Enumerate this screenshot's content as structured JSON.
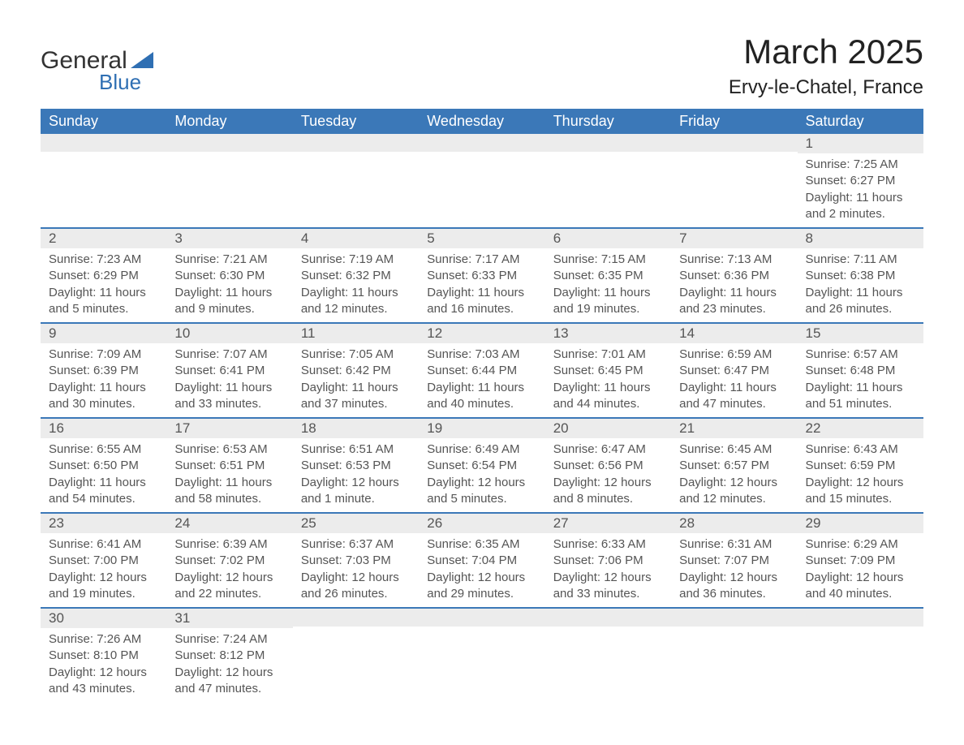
{
  "logo": {
    "text_general": "General",
    "text_blue": "Blue",
    "triangle_color": "#2f6fb3"
  },
  "title": "March 2025",
  "location": "Ervy-le-Chatel, France",
  "header_bg": "#3b78b8",
  "header_text_color": "#ffffff",
  "daynum_bg": "#ececec",
  "row_border_color": "#3b78b8",
  "body_text_color": "#555555",
  "font_family": "Arial, Helvetica, sans-serif",
  "days_of_week": [
    "Sunday",
    "Monday",
    "Tuesday",
    "Wednesday",
    "Thursday",
    "Friday",
    "Saturday"
  ],
  "weeks": [
    [
      null,
      null,
      null,
      null,
      null,
      null,
      {
        "n": "1",
        "sunrise": "Sunrise: 7:25 AM",
        "sunset": "Sunset: 6:27 PM",
        "daylight": "Daylight: 11 hours and 2 minutes."
      }
    ],
    [
      {
        "n": "2",
        "sunrise": "Sunrise: 7:23 AM",
        "sunset": "Sunset: 6:29 PM",
        "daylight": "Daylight: 11 hours and 5 minutes."
      },
      {
        "n": "3",
        "sunrise": "Sunrise: 7:21 AM",
        "sunset": "Sunset: 6:30 PM",
        "daylight": "Daylight: 11 hours and 9 minutes."
      },
      {
        "n": "4",
        "sunrise": "Sunrise: 7:19 AM",
        "sunset": "Sunset: 6:32 PM",
        "daylight": "Daylight: 11 hours and 12 minutes."
      },
      {
        "n": "5",
        "sunrise": "Sunrise: 7:17 AM",
        "sunset": "Sunset: 6:33 PM",
        "daylight": "Daylight: 11 hours and 16 minutes."
      },
      {
        "n": "6",
        "sunrise": "Sunrise: 7:15 AM",
        "sunset": "Sunset: 6:35 PM",
        "daylight": "Daylight: 11 hours and 19 minutes."
      },
      {
        "n": "7",
        "sunrise": "Sunrise: 7:13 AM",
        "sunset": "Sunset: 6:36 PM",
        "daylight": "Daylight: 11 hours and 23 minutes."
      },
      {
        "n": "8",
        "sunrise": "Sunrise: 7:11 AM",
        "sunset": "Sunset: 6:38 PM",
        "daylight": "Daylight: 11 hours and 26 minutes."
      }
    ],
    [
      {
        "n": "9",
        "sunrise": "Sunrise: 7:09 AM",
        "sunset": "Sunset: 6:39 PM",
        "daylight": "Daylight: 11 hours and 30 minutes."
      },
      {
        "n": "10",
        "sunrise": "Sunrise: 7:07 AM",
        "sunset": "Sunset: 6:41 PM",
        "daylight": "Daylight: 11 hours and 33 minutes."
      },
      {
        "n": "11",
        "sunrise": "Sunrise: 7:05 AM",
        "sunset": "Sunset: 6:42 PM",
        "daylight": "Daylight: 11 hours and 37 minutes."
      },
      {
        "n": "12",
        "sunrise": "Sunrise: 7:03 AM",
        "sunset": "Sunset: 6:44 PM",
        "daylight": "Daylight: 11 hours and 40 minutes."
      },
      {
        "n": "13",
        "sunrise": "Sunrise: 7:01 AM",
        "sunset": "Sunset: 6:45 PM",
        "daylight": "Daylight: 11 hours and 44 minutes."
      },
      {
        "n": "14",
        "sunrise": "Sunrise: 6:59 AM",
        "sunset": "Sunset: 6:47 PM",
        "daylight": "Daylight: 11 hours and 47 minutes."
      },
      {
        "n": "15",
        "sunrise": "Sunrise: 6:57 AM",
        "sunset": "Sunset: 6:48 PM",
        "daylight": "Daylight: 11 hours and 51 minutes."
      }
    ],
    [
      {
        "n": "16",
        "sunrise": "Sunrise: 6:55 AM",
        "sunset": "Sunset: 6:50 PM",
        "daylight": "Daylight: 11 hours and 54 minutes."
      },
      {
        "n": "17",
        "sunrise": "Sunrise: 6:53 AM",
        "sunset": "Sunset: 6:51 PM",
        "daylight": "Daylight: 11 hours and 58 minutes."
      },
      {
        "n": "18",
        "sunrise": "Sunrise: 6:51 AM",
        "sunset": "Sunset: 6:53 PM",
        "daylight": "Daylight: 12 hours and 1 minute."
      },
      {
        "n": "19",
        "sunrise": "Sunrise: 6:49 AM",
        "sunset": "Sunset: 6:54 PM",
        "daylight": "Daylight: 12 hours and 5 minutes."
      },
      {
        "n": "20",
        "sunrise": "Sunrise: 6:47 AM",
        "sunset": "Sunset: 6:56 PM",
        "daylight": "Daylight: 12 hours and 8 minutes."
      },
      {
        "n": "21",
        "sunrise": "Sunrise: 6:45 AM",
        "sunset": "Sunset: 6:57 PM",
        "daylight": "Daylight: 12 hours and 12 minutes."
      },
      {
        "n": "22",
        "sunrise": "Sunrise: 6:43 AM",
        "sunset": "Sunset: 6:59 PM",
        "daylight": "Daylight: 12 hours and 15 minutes."
      }
    ],
    [
      {
        "n": "23",
        "sunrise": "Sunrise: 6:41 AM",
        "sunset": "Sunset: 7:00 PM",
        "daylight": "Daylight: 12 hours and 19 minutes."
      },
      {
        "n": "24",
        "sunrise": "Sunrise: 6:39 AM",
        "sunset": "Sunset: 7:02 PM",
        "daylight": "Daylight: 12 hours and 22 minutes."
      },
      {
        "n": "25",
        "sunrise": "Sunrise: 6:37 AM",
        "sunset": "Sunset: 7:03 PM",
        "daylight": "Daylight: 12 hours and 26 minutes."
      },
      {
        "n": "26",
        "sunrise": "Sunrise: 6:35 AM",
        "sunset": "Sunset: 7:04 PM",
        "daylight": "Daylight: 12 hours and 29 minutes."
      },
      {
        "n": "27",
        "sunrise": "Sunrise: 6:33 AM",
        "sunset": "Sunset: 7:06 PM",
        "daylight": "Daylight: 12 hours and 33 minutes."
      },
      {
        "n": "28",
        "sunrise": "Sunrise: 6:31 AM",
        "sunset": "Sunset: 7:07 PM",
        "daylight": "Daylight: 12 hours and 36 minutes."
      },
      {
        "n": "29",
        "sunrise": "Sunrise: 6:29 AM",
        "sunset": "Sunset: 7:09 PM",
        "daylight": "Daylight: 12 hours and 40 minutes."
      }
    ],
    [
      {
        "n": "30",
        "sunrise": "Sunrise: 7:26 AM",
        "sunset": "Sunset: 8:10 PM",
        "daylight": "Daylight: 12 hours and 43 minutes."
      },
      {
        "n": "31",
        "sunrise": "Sunrise: 7:24 AM",
        "sunset": "Sunset: 8:12 PM",
        "daylight": "Daylight: 12 hours and 47 minutes."
      },
      null,
      null,
      null,
      null,
      null
    ]
  ]
}
